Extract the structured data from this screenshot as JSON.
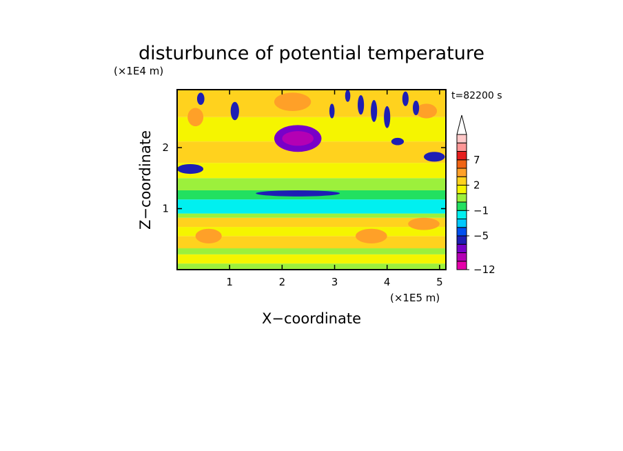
{
  "chart_data": {
    "type": "heatmap",
    "title": "disturbunce of potential temperature",
    "xlabel": "X−coordinate",
    "ylabel": "Z−coordinate",
    "x_unit": "(×1E5 m)",
    "y_unit": "(×1E4 m)",
    "time_label": "t=82200 s",
    "xlim": [
      0,
      5.12
    ],
    "ylim": [
      0,
      2.95
    ],
    "x_ticks": [
      1,
      2,
      3,
      4,
      5
    ],
    "y_ticks": [
      1,
      2
    ],
    "colorbar": {
      "levels": [
        -12,
        -11,
        -9,
        -7,
        -5,
        -4,
        -3,
        -1,
        0,
        1,
        2,
        3,
        5,
        7,
        8,
        9
      ],
      "labels": [
        {
          "value": -12,
          "text": "−12"
        },
        {
          "value": -5,
          "text": "−5"
        },
        {
          "value": -1,
          "text": "−1"
        },
        {
          "value": 2,
          "text": "2"
        },
        {
          "value": 7,
          "text": "7"
        }
      ],
      "colors": [
        "#e600aa",
        "#b400b4",
        "#7800c8",
        "#1e1eb4",
        "#0050f0",
        "#00c8ff",
        "#00f0f0",
        "#22e060",
        "#9cf03c",
        "#f5f500",
        "#ffd21e",
        "#ffa028",
        "#f06414",
        "#e61e1e",
        "#ff9696",
        "#ffc8c8"
      ],
      "extend": "max"
    },
    "bands": [
      {
        "z": [
          0.0,
          0.1
        ],
        "value": 0.5
      },
      {
        "z": [
          0.1,
          0.25
        ],
        "value": 1.5
      },
      {
        "z": [
          0.25,
          0.35
        ],
        "value": 0.5
      },
      {
        "z": [
          0.35,
          0.55
        ],
        "value": 2.5
      },
      {
        "z": [
          0.55,
          0.7
        ],
        "value": 1.5
      },
      {
        "z": [
          0.7,
          0.85
        ],
        "value": 2.5
      },
      {
        "z": [
          0.85,
          0.92
        ],
        "value": 0.5
      },
      {
        "z": [
          0.92,
          1.15
        ],
        "value": -1.5
      },
      {
        "z": [
          1.15,
          1.3
        ],
        "value": -0.5
      },
      {
        "z": [
          1.3,
          1.5
        ],
        "value": 0.5
      },
      {
        "z": [
          1.5,
          1.75
        ],
        "value": 1.5
      },
      {
        "z": [
          1.75,
          2.1
        ],
        "value": 2.5
      },
      {
        "z": [
          2.1,
          2.5
        ],
        "value": 1.5
      },
      {
        "z": [
          2.5,
          2.95
        ],
        "value": 2.5
      }
    ],
    "blobs": [
      {
        "x": 2.3,
        "z": 2.15,
        "rx": 0.45,
        "rz": 0.22,
        "value": -7.5
      },
      {
        "x": 2.3,
        "z": 2.15,
        "rx": 0.3,
        "rz": 0.12,
        "value": -10
      },
      {
        "x": 2.2,
        "z": 2.75,
        "rx": 0.35,
        "rz": 0.15,
        "value": 3.5
      },
      {
        "x": 0.25,
        "z": 1.65,
        "rx": 0.25,
        "rz": 0.08,
        "value": -6
      },
      {
        "x": 4.9,
        "z": 1.85,
        "rx": 0.2,
        "rz": 0.08,
        "value": -6
      },
      {
        "x": 0.35,
        "z": 2.5,
        "rx": 0.15,
        "rz": 0.15,
        "value": 3.5
      },
      {
        "x": 4.75,
        "z": 2.6,
        "rx": 0.2,
        "rz": 0.12,
        "value": 3.5
      },
      {
        "x": 2.3,
        "z": 1.25,
        "rx": 0.8,
        "rz": 0.05,
        "value": -6
      },
      {
        "x": 0.6,
        "z": 0.55,
        "rx": 0.25,
        "rz": 0.12,
        "value": 3.5
      },
      {
        "x": 3.7,
        "z": 0.55,
        "rx": 0.3,
        "rz": 0.12,
        "value": 3.5
      },
      {
        "x": 4.7,
        "z": 0.75,
        "rx": 0.3,
        "rz": 0.1,
        "value": 3.5
      },
      {
        "x": 3.5,
        "z": 2.7,
        "rx": 0.06,
        "rz": 0.16,
        "value": -6
      },
      {
        "x": 3.75,
        "z": 2.6,
        "rx": 0.06,
        "rz": 0.18,
        "value": -6
      },
      {
        "x": 4.0,
        "z": 2.5,
        "rx": 0.06,
        "rz": 0.18,
        "value": -6
      },
      {
        "x": 4.35,
        "z": 2.8,
        "rx": 0.06,
        "rz": 0.12,
        "value": -6
      },
      {
        "x": 4.55,
        "z": 2.65,
        "rx": 0.06,
        "rz": 0.12,
        "value": -6
      },
      {
        "x": 1.1,
        "z": 2.6,
        "rx": 0.08,
        "rz": 0.15,
        "value": -6
      },
      {
        "x": 0.45,
        "z": 2.8,
        "rx": 0.07,
        "rz": 0.1,
        "value": -6
      },
      {
        "x": 3.25,
        "z": 2.85,
        "rx": 0.05,
        "rz": 0.1,
        "value": -6
      },
      {
        "x": 2.95,
        "z": 2.6,
        "rx": 0.05,
        "rz": 0.12,
        "value": -6
      },
      {
        "x": 4.2,
        "z": 2.1,
        "rx": 0.12,
        "rz": 0.06,
        "value": -6
      }
    ]
  }
}
